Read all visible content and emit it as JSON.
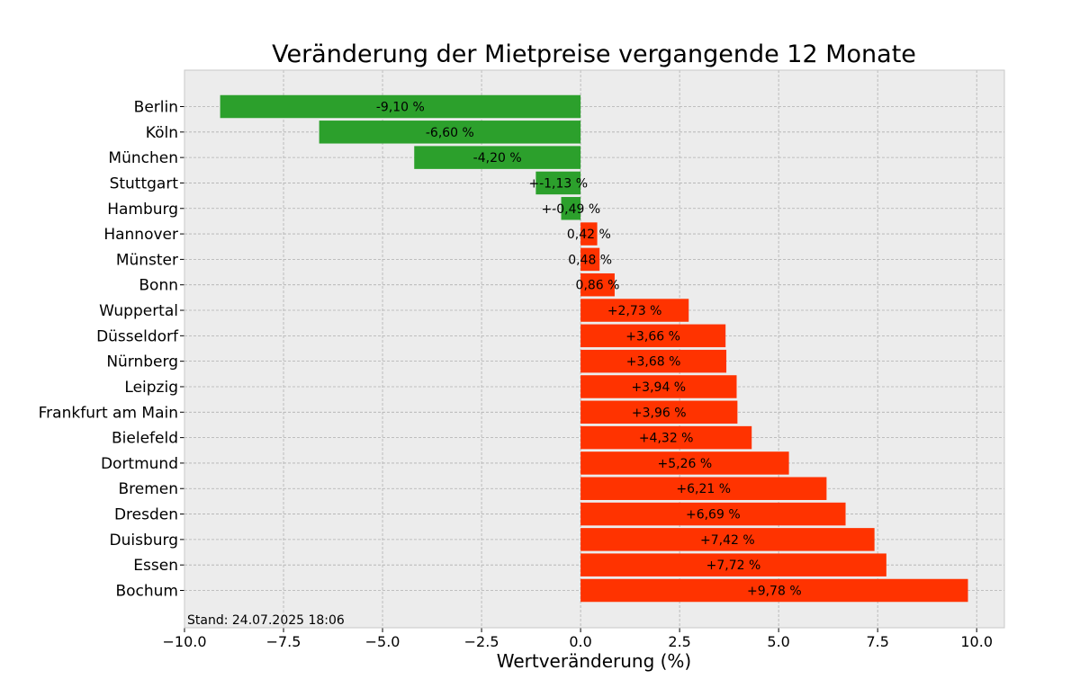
{
  "chart_data": {
    "type": "bar",
    "orientation": "horizontal",
    "title": "Veränderung der Mietpreise vergangende 12 Monate",
    "xlabel": "Wertveränderung (%)",
    "ylabel": "",
    "xlim": [
      -10.0,
      10.7
    ],
    "xticks": [
      -10.0,
      -7.5,
      -5.0,
      -2.5,
      0.0,
      2.5,
      5.0,
      7.5,
      10.0
    ],
    "xtick_labels": [
      "−10.0",
      "−7.5",
      "−5.0",
      "−2.5",
      "0.0",
      "2.5",
      "5.0",
      "7.5",
      "10.0"
    ],
    "grid": true,
    "background": "#ececec",
    "colors": {
      "negative": "#2ca02c",
      "positive": "#ff3300"
    },
    "footnote": "Stand: 24.07.2025 18:06",
    "categories": [
      "Berlin",
      "Köln",
      "München",
      "Stuttgart",
      "Hamburg",
      "Hannover",
      "Münster",
      "Bonn",
      "Wuppertal",
      "Düsseldorf",
      "Nürnberg",
      "Leipzig",
      "Frankfurt am Main",
      "Bielefeld",
      "Dortmund",
      "Bremen",
      "Dresden",
      "Duisburg",
      "Essen",
      "Bochum"
    ],
    "values": [
      -9.1,
      -6.6,
      -4.2,
      -1.13,
      -0.49,
      0.42,
      0.48,
      0.86,
      2.73,
      3.66,
      3.68,
      3.94,
      3.96,
      4.32,
      5.26,
      6.21,
      6.69,
      7.42,
      7.72,
      9.78
    ],
    "labels": [
      "-9,10 %",
      "-6,60 %",
      "-4,20 %",
      "+-1,13 %",
      "+-0,49 %",
      "0,42 %",
      "0,48 %",
      "0,86 %",
      "+2,73 %",
      "+3,66 %",
      "+3,68 %",
      "+3,94 %",
      "+3,96 %",
      "+4,32 %",
      "+5,26 %",
      "+6,21 %",
      "+6,69 %",
      "+7,42 %",
      "+7,72 %",
      "+9,78 %"
    ]
  }
}
